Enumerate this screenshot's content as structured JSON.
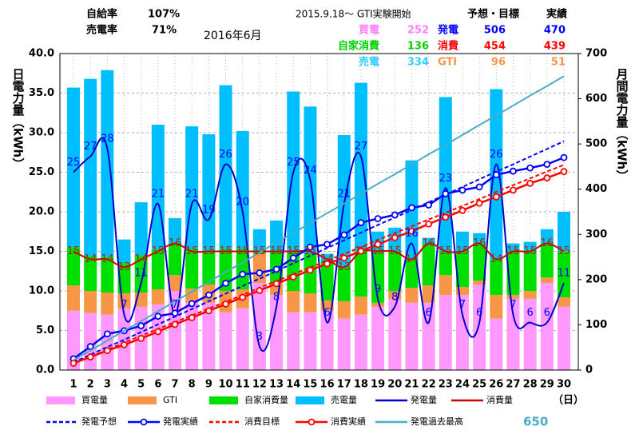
{
  "summary": {
    "rates": [
      {
        "label": "自給率",
        "value": "107%"
      },
      {
        "label": "売電率",
        "value": "71%"
      }
    ],
    "month": "2016年6月",
    "note": "2015.9.18～ GTI実験開始",
    "columns": [
      "予想・目標",
      "実績"
    ],
    "left_rows": [
      {
        "label": "買電",
        "color": "#ff80ff",
        "target": 252
      },
      {
        "label": "自家消費",
        "color": "#00d000",
        "target": 136
      },
      {
        "label": "売電",
        "color": "#33ccff",
        "target": 334
      }
    ],
    "right_rows": [
      {
        "label": "発電",
        "color": "#0000ff",
        "target": 506,
        "actual": 470
      },
      {
        "label": "消費",
        "color": "#ff0000",
        "target": 454,
        "actual": 439
      },
      {
        "label": "GTI",
        "color": "#f79646",
        "target": 96,
        "actual": 51
      }
    ]
  },
  "chart_data": {
    "type": "combo",
    "categories": [
      "1",
      "2",
      "3",
      "4",
      "5",
      "6",
      "7",
      "8",
      "9",
      "10",
      "11",
      "12",
      "13",
      "14",
      "15",
      "16",
      "17",
      "18",
      "19",
      "20",
      "21",
      "22",
      "23",
      "24",
      "25",
      "26",
      "27",
      "28",
      "29",
      "30"
    ],
    "xlabel": "（日）",
    "ylabel": "日電力量（kWh）",
    "y2label": "月間電力量（kWh）",
    "ylim": [
      0,
      40
    ],
    "yticks": [
      {
        "value": 0,
        "label": "0.0"
      },
      {
        "value": 5,
        "label": "5.0"
      },
      {
        "value": 10,
        "label": "10.0"
      },
      {
        "value": 15,
        "label": "15.0"
      },
      {
        "value": 20,
        "label": "20.0"
      },
      {
        "value": 25,
        "label": "25.0"
      },
      {
        "value": 30,
        "label": "30.0"
      },
      {
        "value": 35,
        "label": "35.0"
      },
      {
        "value": 40,
        "label": "40.0"
      }
    ],
    "y2lim": [
      0,
      700
    ],
    "y2ticks": [
      0,
      100,
      200,
      300,
      400,
      500,
      600,
      700
    ],
    "grid": true,
    "series": [
      {
        "name": "買電量",
        "kind": "bar",
        "color": "#ff99ff",
        "values": [
          7.5,
          7.2,
          7.0,
          7.8,
          8.0,
          8.3,
          10.0,
          8.5,
          8.5,
          7.3,
          7.8,
          11.0,
          9.5,
          7.3,
          7.3,
          7.5,
          6.5,
          7.0,
          8.0,
          9.0,
          8.5,
          8.5,
          9.5,
          9.5,
          10.8,
          6.5,
          9.0,
          9.0,
          11.0,
          8.0
        ]
      },
      {
        "name": "GTI",
        "kind": "bar",
        "color": "#f79646",
        "values": [
          3.2,
          2.8,
          2.8,
          1.9,
          1.8,
          1.9,
          2.0,
          1.8,
          2.3,
          2.7,
          2.4,
          3.8,
          1.5,
          2.7,
          2.4,
          1.3,
          2.2,
          2.3,
          0.5,
          1.0,
          1.9,
          2.2,
          2.5,
          1.0,
          0.5,
          3.0,
          0.5,
          1.0,
          0.7,
          1.2
        ]
      },
      {
        "name": "自家消費量",
        "kind": "bar",
        "color": "#00e000",
        "values": [
          4.8,
          4.4,
          4.5,
          3.8,
          4.7,
          5.0,
          4.0,
          5.0,
          4.2,
          5.3,
          5.1,
          0.2,
          4.0,
          5.0,
          5.0,
          5.0,
          4.3,
          5.7,
          6.5,
          5.0,
          3.6,
          5.3,
          3.0,
          4.5,
          4.7,
          4.5,
          5.5,
          5.0,
          4.3,
          5.8
        ]
      },
      {
        "name": "売電量",
        "kind": "bar",
        "color": "#00bfff",
        "values": [
          20.2,
          22.4,
          23.6,
          3.0,
          6.7,
          15.8,
          3.2,
          15.5,
          14.8,
          20.7,
          14.9,
          2.8,
          3.9,
          20.2,
          18.6,
          0.9,
          16.7,
          21.3,
          2.5,
          3.0,
          12.5,
          0.7,
          19.5,
          2.5,
          1.3,
          21.5,
          1.0,
          1.2,
          1.8,
          5.0
        ]
      },
      {
        "name": "発電量",
        "kind": "line",
        "style": "smooth",
        "labels": true,
        "label_color": "#0000ff",
        "color": "#0000cc",
        "values": [
          25,
          27,
          28,
          7,
          11,
          21,
          7,
          21,
          19,
          26,
          20,
          3,
          8,
          25,
          24,
          6,
          21,
          27,
          9,
          8,
          16,
          6,
          23,
          7,
          6,
          26,
          7,
          6,
          6,
          11
        ]
      },
      {
        "name": "消費量",
        "kind": "line",
        "style": "smooth",
        "labels": true,
        "label_color": "#993300",
        "color": "#cc0000",
        "values": [
          15,
          14,
          14,
          13,
          14,
          15,
          16,
          15,
          15,
          15,
          15,
          15,
          15,
          15,
          15,
          14,
          13,
          15,
          15,
          15,
          14,
          16,
          15,
          15,
          16,
          14,
          15,
          15,
          16,
          15
        ]
      },
      {
        "name": "発電予想",
        "kind": "line",
        "style": "dashed",
        "axis": "y2",
        "color": "#0000ff",
        "values": [
          17,
          34,
          51,
          67,
          84,
          101,
          118,
          135,
          152,
          169,
          186,
          202,
          219,
          236,
          253,
          270,
          287,
          304,
          321,
          337,
          354,
          371,
          388,
          405,
          422,
          439,
          455,
          472,
          489,
          506
        ]
      },
      {
        "name": "発電実績",
        "kind": "line",
        "style": "markers",
        "axis": "y2",
        "color": "#0000ff",
        "values": [
          25,
          52,
          80,
          87,
          98,
          119,
          126,
          147,
          166,
          192,
          212,
          215,
          223,
          248,
          272,
          278,
          299,
          326,
          335,
          343,
          359,
          365,
          390,
          398,
          405,
          432,
          440,
          447,
          455,
          470
        ]
      },
      {
        "name": "消費目標",
        "kind": "line",
        "style": "dashed",
        "axis": "y2",
        "color": "#ff0000",
        "values": [
          15,
          30,
          45,
          61,
          76,
          91,
          106,
          121,
          136,
          151,
          166,
          182,
          197,
          212,
          227,
          242,
          257,
          272,
          288,
          303,
          318,
          333,
          348,
          363,
          378,
          394,
          409,
          424,
          439,
          454
        ]
      },
      {
        "name": "消費実績",
        "kind": "line",
        "style": "markers",
        "axis": "y2",
        "color": "#ff0000",
        "values": [
          15,
          29,
          43,
          56,
          70,
          85,
          101,
          116,
          131,
          146,
          161,
          176,
          191,
          206,
          221,
          235,
          248,
          263,
          278,
          293,
          307,
          323,
          338,
          353,
          369,
          383,
          398,
          413,
          425,
          439
        ]
      },
      {
        "name": "発電過去最高",
        "kind": "line",
        "style": "plain",
        "axis": "y2",
        "color": "#4bacc6",
        "values": [
          22,
          43,
          65,
          87,
          108,
          130,
          152,
          173,
          195,
          217,
          238,
          260,
          282,
          303,
          325,
          347,
          368,
          390,
          412,
          433,
          455,
          477,
          498,
          520,
          542,
          563,
          585,
          607,
          628,
          650
        ]
      }
    ],
    "annotation": {
      "text": "650",
      "color": "#4bacc6"
    }
  }
}
